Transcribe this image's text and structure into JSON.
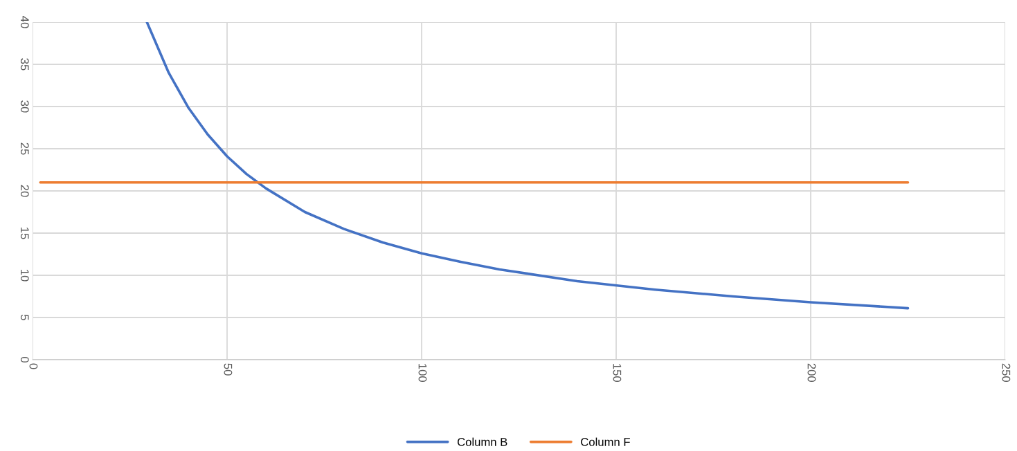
{
  "chart_data": {
    "type": "line",
    "series": [
      {
        "name": "Column B",
        "color": "#4472c4",
        "x": [
          29.4,
          35,
          40,
          45,
          50,
          55,
          60,
          70,
          80,
          90,
          100,
          110,
          120,
          140,
          160,
          180,
          200,
          225
        ],
        "values": [
          40,
          34,
          29.9,
          26.7,
          24.1,
          22,
          20.3,
          17.5,
          15.5,
          13.9,
          12.6,
          11.6,
          10.7,
          9.3,
          8.3,
          7.5,
          6.8,
          6.1
        ]
      },
      {
        "name": "Column F",
        "color": "#ed7d31",
        "x": [
          2,
          225
        ],
        "values": [
          21,
          21
        ]
      }
    ],
    "xlim": [
      0,
      250
    ],
    "xticks": [
      0,
      50,
      100,
      150,
      200,
      250
    ],
    "ylim": [
      0,
      40
    ],
    "yticks": [
      0,
      5,
      10,
      15,
      20,
      25,
      30,
      35,
      40
    ],
    "grid": true,
    "legend": "bottom",
    "marker": "none",
    "line_style": "solid"
  }
}
